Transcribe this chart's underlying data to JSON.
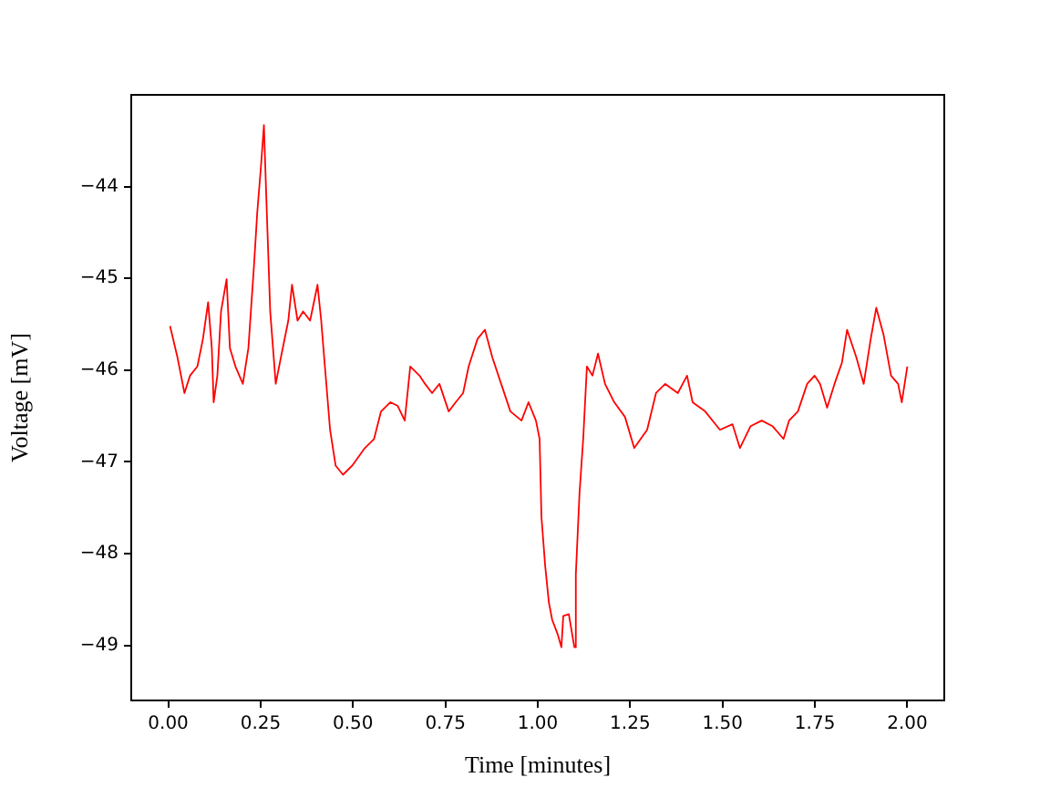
{
  "chart_data": {
    "type": "line",
    "xlabel": "Time [minutes]",
    "ylabel": "Voltage [mV]",
    "x": [
      0.005,
      0.025,
      0.044,
      0.059,
      0.079,
      0.094,
      0.108,
      0.118,
      0.123,
      0.133,
      0.143,
      0.158,
      0.167,
      0.182,
      0.202,
      0.217,
      0.232,
      0.241,
      0.251,
      0.259,
      0.266,
      0.276,
      0.291,
      0.305,
      0.325,
      0.335,
      0.35,
      0.365,
      0.384,
      0.404,
      0.414,
      0.424,
      0.438,
      0.453,
      0.473,
      0.498,
      0.532,
      0.557,
      0.576,
      0.601,
      0.621,
      0.64,
      0.655,
      0.68,
      0.695,
      0.714,
      0.734,
      0.759,
      0.778,
      0.798,
      0.813,
      0.837,
      0.857,
      0.877,
      0.901,
      0.926,
      0.956,
      0.975,
      0.995,
      1.005,
      1.01,
      1.02,
      1.03,
      1.039,
      1.054,
      1.064,
      1.069,
      1.084,
      1.099,
      1.103,
      1.113,
      1.123,
      1.133,
      1.148,
      1.163,
      1.182,
      1.207,
      1.236,
      1.261,
      1.296,
      1.32,
      1.345,
      1.379,
      1.404,
      1.419,
      1.453,
      1.493,
      1.527,
      1.547,
      1.576,
      1.606,
      1.635,
      1.665,
      1.68,
      1.704,
      1.729,
      1.749,
      1.764,
      1.783,
      1.803,
      1.823,
      1.837,
      1.862,
      1.882,
      1.901,
      1.916,
      1.936,
      1.956,
      1.975,
      1.985,
      2.0
    ],
    "series": [
      {
        "color": "#ff0000",
        "values": [
          -45.52,
          -45.86,
          -46.25,
          -46.06,
          -45.96,
          -45.66,
          -45.26,
          -45.76,
          -46.35,
          -46.06,
          -45.36,
          -45.01,
          -45.76,
          -45.96,
          -46.15,
          -45.76,
          -44.87,
          -44.28,
          -43.78,
          -43.33,
          -44.18,
          -45.36,
          -46.15,
          -45.86,
          -45.46,
          -45.07,
          -45.46,
          -45.36,
          -45.46,
          -45.07,
          -45.46,
          -45.96,
          -46.65,
          -47.04,
          -47.14,
          -47.04,
          -46.85,
          -46.75,
          -46.45,
          -46.35,
          -46.39,
          -46.55,
          -45.96,
          -46.06,
          -46.15,
          -46.25,
          -46.15,
          -46.45,
          -46.35,
          -46.25,
          -45.96,
          -45.66,
          -45.56,
          -45.86,
          -46.15,
          -46.45,
          -46.55,
          -46.35,
          -46.55,
          -46.75,
          -47.6,
          -48.13,
          -48.53,
          -48.72,
          -48.88,
          -49.02,
          -48.68,
          -48.66,
          -49.02,
          -48.23,
          -47.34,
          -46.75,
          -45.96,
          -46.06,
          -45.82,
          -46.15,
          -46.35,
          -46.51,
          -46.85,
          -46.65,
          -46.25,
          -46.15,
          -46.25,
          -46.06,
          -46.35,
          -46.45,
          -46.65,
          -46.59,
          -46.85,
          -46.61,
          -46.55,
          -46.61,
          -46.75,
          -46.55,
          -46.45,
          -46.15,
          -46.06,
          -46.15,
          -46.41,
          -46.15,
          -45.92,
          -45.56,
          -45.86,
          -46.15,
          -45.66,
          -45.32,
          -45.62,
          -46.06,
          -46.15,
          -46.35,
          -45.96
        ]
      }
    ],
    "xlim": [
      -0.1,
      2.1
    ],
    "ylim": [
      -49.6,
      -43.0
    ],
    "xticks": [
      {
        "value": 0,
        "label": "0.00"
      },
      {
        "value": 0.25,
        "label": "0.25"
      },
      {
        "value": 0.5,
        "label": "0.50"
      },
      {
        "value": 0.75,
        "label": "0.75"
      },
      {
        "value": 1,
        "label": "1.00"
      },
      {
        "value": 1.25,
        "label": "1.25"
      },
      {
        "value": 1.5,
        "label": "1.50"
      },
      {
        "value": 1.75,
        "label": "1.75"
      },
      {
        "value": 2,
        "label": "2.00"
      }
    ],
    "yticks": [
      {
        "value": -49,
        "label": "−49"
      },
      {
        "value": -48,
        "label": "−48"
      },
      {
        "value": -47,
        "label": "−47"
      },
      {
        "value": -46,
        "label": "−46"
      },
      {
        "value": -45,
        "label": "−45"
      },
      {
        "value": -44,
        "label": "−44"
      }
    ],
    "grid": false,
    "legend": false,
    "marker": "none",
    "line_style": "solid"
  }
}
